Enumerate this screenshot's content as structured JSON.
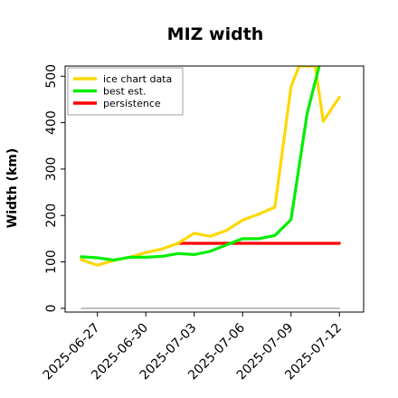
{
  "chart_data": {
    "type": "line",
    "title": "MIZ width",
    "ylabel": "Width (km)",
    "xlabel": "",
    "ylim": [
      -8,
      522
    ],
    "yticks": [
      0,
      100,
      200,
      300,
      400,
      500
    ],
    "xlim": [
      "2025-06-25T00:00",
      "2025-07-13T12:00"
    ],
    "xticks": [
      "2025-06-27",
      "2025-06-30",
      "2025-07-03",
      "2025-07-06",
      "2025-07-09",
      "2025-07-12"
    ],
    "legend_position": "top-left",
    "grid": false,
    "series": [
      {
        "name": "ice chart data",
        "color": "#ffd700",
        "points": [
          [
            "2025-06-26T00:00",
            105
          ],
          [
            "2025-06-27T00:00",
            93
          ],
          [
            "2025-06-28T00:00",
            103
          ],
          [
            "2025-06-29T00:00",
            110
          ],
          [
            "2025-06-30T00:00",
            120
          ],
          [
            "2025-07-01T00:00",
            128
          ],
          [
            "2025-07-02T00:00",
            140
          ],
          [
            "2025-07-03T00:00",
            162
          ],
          [
            "2025-07-04T00:00",
            155
          ],
          [
            "2025-07-05T00:00",
            168
          ],
          [
            "2025-07-06T00:00",
            190
          ],
          [
            "2025-07-07T00:00",
            203
          ],
          [
            "2025-07-08T00:00",
            218
          ],
          [
            "2025-07-09T00:00",
            477
          ],
          [
            "2025-07-09T12:00",
            522
          ],
          [
            "2025-07-10T12:00",
            522
          ],
          [
            "2025-07-11T00:00",
            403
          ],
          [
            "2025-07-12T00:00",
            455
          ]
        ]
      },
      {
        "name": "best est.",
        "color": "#00ee00",
        "points": [
          [
            "2025-06-26T00:00",
            111
          ],
          [
            "2025-06-27T00:00",
            109
          ],
          [
            "2025-06-28T00:00",
            104
          ],
          [
            "2025-06-29T00:00",
            110
          ],
          [
            "2025-06-30T00:00",
            110
          ],
          [
            "2025-07-01T00:00",
            112
          ],
          [
            "2025-07-02T00:00",
            118
          ],
          [
            "2025-07-03T00:00",
            116
          ],
          [
            "2025-07-04T00:00",
            123
          ],
          [
            "2025-07-05T00:00",
            137
          ],
          [
            "2025-07-06T00:00",
            150
          ],
          [
            "2025-07-07T00:00",
            150
          ],
          [
            "2025-07-08T00:00",
            157
          ],
          [
            "2025-07-09T00:00",
            191
          ],
          [
            "2025-07-10T00:00",
            420
          ],
          [
            "2025-07-10T18:00",
            522
          ]
        ]
      },
      {
        "name": "persistence",
        "color": "#ff0000",
        "points": [
          [
            "2025-07-02T00:00",
            140
          ],
          [
            "2025-07-12T00:00",
            140
          ]
        ]
      },
      {
        "name": "",
        "color": "#999999",
        "points": [
          [
            "2025-06-26T00:00",
            0
          ],
          [
            "2025-07-12T00:00",
            0
          ]
        ]
      }
    ]
  }
}
